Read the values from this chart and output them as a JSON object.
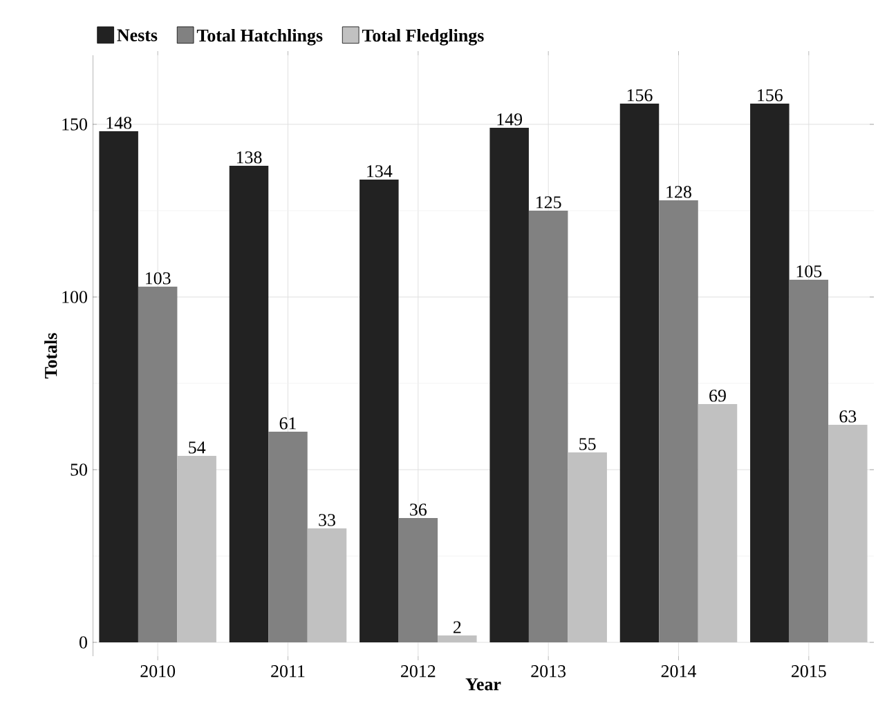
{
  "chart_data": {
    "type": "bar",
    "xlabel": "Year",
    "ylabel": "Totals",
    "categories": [
      "2010",
      "2011",
      "2012",
      "2013",
      "2014",
      "2015"
    ],
    "series": [
      {
        "name": "Nests",
        "color": "#222222",
        "values": [
          148,
          138,
          134,
          149,
          156,
          156
        ]
      },
      {
        "name": "Total Hatchlings",
        "color": "#818181",
        "values": [
          103,
          61,
          36,
          125,
          128,
          105
        ]
      },
      {
        "name": "Total Fledglings",
        "color": "#c1c1c1",
        "values": [
          54,
          33,
          2,
          55,
          69,
          63
        ]
      }
    ],
    "ylim": [
      -4,
      170
    ],
    "yticks": [
      0,
      50,
      100,
      150
    ],
    "grid": true,
    "legend": "top left",
    "data_labels": true
  }
}
